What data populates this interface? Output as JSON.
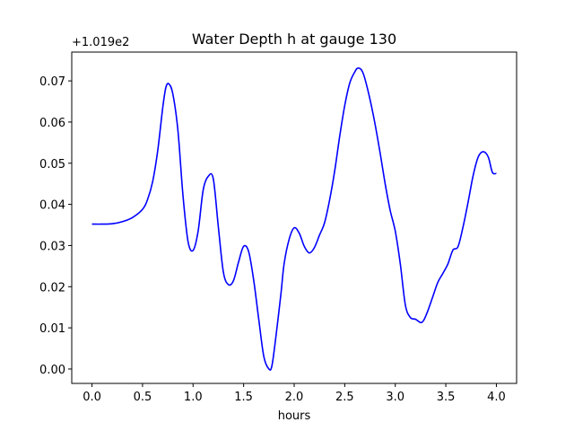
{
  "chart_data": {
    "type": "line",
    "title": "Water Depth h at gauge 130",
    "xlabel": "hours",
    "ylabel": "",
    "y_offset_label": "+1.019e2",
    "xlim": [
      -0.2,
      4.2
    ],
    "ylim": [
      -0.0035,
      0.077
    ],
    "xticks": [
      0.0,
      0.5,
      1.0,
      1.5,
      2.0,
      2.5,
      3.0,
      3.5,
      4.0
    ],
    "xtick_labels": [
      "0.0",
      "0.5",
      "1.0",
      "1.5",
      "2.0",
      "2.5",
      "3.0",
      "3.5",
      "4.0"
    ],
    "yticks": [
      0.0,
      0.01,
      0.02,
      0.03,
      0.04,
      0.05,
      0.06,
      0.07
    ],
    "ytick_labels": [
      "0.00",
      "0.01",
      "0.02",
      "0.03",
      "0.04",
      "0.05",
      "0.06",
      "0.07"
    ],
    "grid": false,
    "color": "#0000ff",
    "series": [
      {
        "x": [
          0.0,
          0.1,
          0.2,
          0.3,
          0.4,
          0.5,
          0.55,
          0.6,
          0.65,
          0.7,
          0.73,
          0.76,
          0.8,
          0.85,
          0.9,
          0.95,
          1.0,
          1.05,
          1.1,
          1.15,
          1.2,
          1.25,
          1.3,
          1.35,
          1.4,
          1.45,
          1.5,
          1.55,
          1.6,
          1.65,
          1.7,
          1.75,
          1.78,
          1.82,
          1.87,
          1.9,
          1.95,
          2.0,
          2.05,
          2.1,
          2.15,
          2.2,
          2.25,
          2.3,
          2.35,
          2.4,
          2.45,
          2.5,
          2.55,
          2.6,
          2.63,
          2.67,
          2.7,
          2.75,
          2.8,
          2.85,
          2.9,
          2.95,
          3.0,
          3.05,
          3.1,
          3.15,
          3.2,
          3.25,
          3.28,
          3.32,
          3.37,
          3.42,
          3.47,
          3.52,
          3.57,
          3.62,
          3.67,
          3.72,
          3.77,
          3.82,
          3.87,
          3.92,
          3.96,
          4.0
        ],
        "y": [
          0.0352,
          0.0352,
          0.0353,
          0.0358,
          0.0368,
          0.0388,
          0.0412,
          0.0455,
          0.053,
          0.0635,
          0.0683,
          0.0693,
          0.0668,
          0.058,
          0.0422,
          0.031,
          0.0288,
          0.0335,
          0.0435,
          0.0468,
          0.0462,
          0.0345,
          0.0235,
          0.0205,
          0.0215,
          0.026,
          0.0298,
          0.0285,
          0.0215,
          0.012,
          0.003,
          0.0,
          0.0008,
          0.008,
          0.0185,
          0.0255,
          0.0315,
          0.0343,
          0.033,
          0.0298,
          0.0282,
          0.0295,
          0.0325,
          0.0355,
          0.041,
          0.048,
          0.0565,
          0.064,
          0.0695,
          0.0722,
          0.0731,
          0.0725,
          0.0705,
          0.0655,
          0.0595,
          0.0525,
          0.045,
          0.0385,
          0.0335,
          0.0255,
          0.0155,
          0.0125,
          0.0121,
          0.0113,
          0.0118,
          0.014,
          0.0175,
          0.021,
          0.0232,
          0.0255,
          0.0289,
          0.0297,
          0.0345,
          0.0405,
          0.047,
          0.0515,
          0.0528,
          0.0515,
          0.0478,
          0.0475
        ]
      }
    ]
  }
}
